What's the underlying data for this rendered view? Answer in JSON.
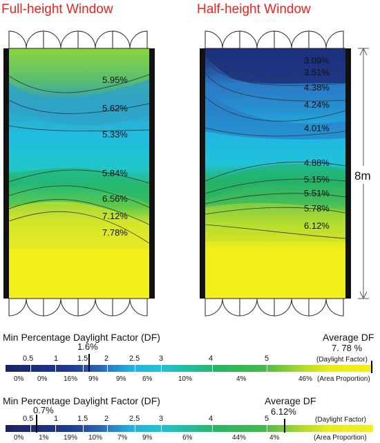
{
  "titles": {
    "full": "Full-height Window",
    "half": "Half-height Window"
  },
  "dimension_label": "8m",
  "full_labels": [
    "5.95%",
    "5.62%",
    "5.33%",
    "5.84%",
    "6.56%",
    "7.12%",
    "7.78%"
  ],
  "half_labels": [
    "3.09%",
    "3.51%",
    "4.38%",
    "4.24%",
    "4.01%",
    "4.88%",
    "5.15%",
    "5.51%",
    "5.78%",
    "6.12%"
  ],
  "colors": {
    "title_red": "#e8231d",
    "df_dark": "#1c2f7d",
    "df_mid_blue": "#2a78c4",
    "df_cyan": "#22bde2",
    "df_green": "#25b36a",
    "df_yellow": "#f2ee1a"
  },
  "scale1": {
    "heading": "Min Percentage Daylight Factor (DF)",
    "min_value": "1.6%",
    "avg_heading": "Average DF",
    "avg_value": "7. 78 %",
    "df_unit": "(Daylight Factor)",
    "ticks": [
      "0.5",
      "1",
      "1.5",
      "2",
      "2.5",
      "3",
      "4",
      "5"
    ],
    "proportions": [
      "0%",
      "0%",
      "16%",
      "9%",
      "9%",
      "6%",
      "10%",
      "4%",
      "46%"
    ],
    "area_unit": "(Area Proportion)"
  },
  "scale2": {
    "heading": "Min Percentage Daylight Factor (DF)",
    "min_value": "0.7%",
    "avg_heading": "Average DF",
    "avg_value": "6.12%",
    "df_unit": "(Daylight Factor)",
    "ticks": [
      "0.5",
      "1",
      "1.5",
      "2",
      "2.5",
      "3",
      "4",
      "5"
    ],
    "proportions": [
      "0%",
      "1%",
      "19%",
      "10%",
      "7%",
      "9%",
      "6%",
      "44%",
      "4%"
    ],
    "area_unit": "(Area Proportion)"
  }
}
